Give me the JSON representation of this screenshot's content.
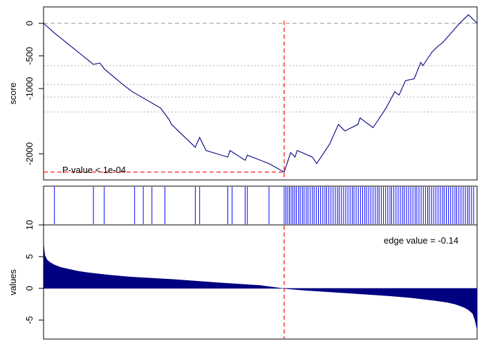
{
  "chart_data": [
    {
      "type": "line",
      "panel": "running-score",
      "ylabel": "score",
      "yticks": [
        0,
        -500,
        -1000,
        -2000
      ],
      "ylim": [
        -2400,
        250
      ],
      "xlim": [
        0,
        100
      ],
      "annotation": "P-value < 1e-04",
      "min_score": -2280,
      "min_position": 55.5,
      "reference_lines_dashed_gray": [
        0
      ],
      "reference_lines_dotted_gray": [
        -650,
        -940,
        -1130,
        -1360
      ],
      "line_color": "#000080",
      "marker_line_color": "#ff0000",
      "x": [
        0,
        2.5,
        11.5,
        13.0,
        14.0,
        18.5,
        20.5,
        27.0,
        29.0,
        29.5,
        35.0,
        36.0,
        37.5,
        42.5,
        43.0,
        46.5,
        47.0,
        52.0,
        55.5,
        57.0,
        58.0,
        58.5,
        62.0,
        63.0,
        66.0,
        68.0,
        69.5,
        72.5,
        73.0,
        76.0,
        78.0,
        79.0,
        81.0,
        82.0,
        83.5,
        85.5,
        87.0,
        87.5,
        89.5,
        91.0,
        92.0,
        94.0,
        96.0,
        98.0,
        100.0
      ],
      "y": [
        0,
        -150,
        -630,
        -610,
        -700,
        -950,
        -1050,
        -1300,
        -1480,
        -1550,
        -1900,
        -1750,
        -1950,
        -2050,
        -1950,
        -2100,
        -2020,
        -2150,
        -2280,
        -1980,
        -2050,
        -1950,
        -2050,
        -2150,
        -1850,
        -1550,
        -1650,
        -1550,
        -1450,
        -1600,
        -1400,
        -1300,
        -1050,
        -1100,
        -880,
        -850,
        -600,
        -650,
        -450,
        -350,
        -300,
        -150,
        0,
        130,
        0
      ]
    },
    {
      "type": "rug",
      "panel": "hit-positions",
      "line_color": "#0000ff",
      "positions": [
        2.5,
        11.5,
        14.0,
        21.0,
        23.0,
        25.0,
        28.0,
        35.0,
        36.0,
        42.5,
        43.5,
        46.5,
        47.0,
        52.0,
        55.5,
        55.9,
        56.3,
        56.7,
        57.1,
        57.5,
        57.9,
        58.3,
        58.8,
        59.2,
        59.7,
        60.1,
        60.6,
        61.0,
        61.5,
        62.0,
        62.4,
        62.9,
        63.4,
        63.9,
        64.4,
        64.9,
        65.3,
        65.8,
        66.3,
        66.8,
        67.3,
        67.8,
        68.2,
        68.7,
        69.2,
        69.7,
        70.2,
        70.7,
        71.2,
        71.6,
        72.1,
        72.6,
        73.1,
        73.6,
        74.1,
        74.5,
        75.0,
        75.5,
        76.0,
        76.5,
        77.0,
        77.4,
        77.9,
        78.4,
        78.9,
        79.4,
        79.9,
        80.3,
        80.8,
        81.3,
        81.8,
        82.3,
        82.8,
        83.2,
        83.7,
        84.2,
        84.7,
        85.2,
        85.7,
        86.1,
        86.6,
        87.1,
        87.6,
        88.1,
        88.6,
        89.0,
        89.5,
        90.0,
        90.5,
        91.0,
        91.5,
        92.0,
        92.4,
        92.9,
        93.4,
        93.9,
        94.4,
        94.9,
        95.3,
        95.8,
        96.3,
        96.8,
        97.3,
        97.8,
        98.2,
        98.7,
        99.2
      ]
    },
    {
      "type": "area",
      "panel": "ranked-values",
      "ylabel": "values",
      "yticks": [
        10,
        5,
        0,
        -5
      ],
      "ylim": [
        -8,
        10
      ],
      "xlim": [
        0,
        100
      ],
      "annotation": "edge value =  -0.14",
      "fill_color": "#000080",
      "marker_line_color": "#ff0000",
      "x": [
        0,
        0.3,
        0.8,
        1.5,
        2.5,
        4,
        6,
        8,
        10,
        15,
        20,
        30,
        40,
        50,
        55,
        60,
        70,
        80,
        85,
        90,
        93,
        95,
        97,
        98,
        99,
        99.5,
        100
      ],
      "y": [
        7.0,
        5.2,
        4.5,
        4.1,
        3.7,
        3.3,
        3.0,
        2.7,
        2.5,
        2.1,
        1.8,
        1.4,
        0.9,
        0.45,
        0.0,
        -0.3,
        -0.75,
        -1.2,
        -1.5,
        -1.9,
        -2.2,
        -2.5,
        -3.0,
        -3.4,
        -4.0,
        -5.0,
        -6.5
      ]
    }
  ]
}
